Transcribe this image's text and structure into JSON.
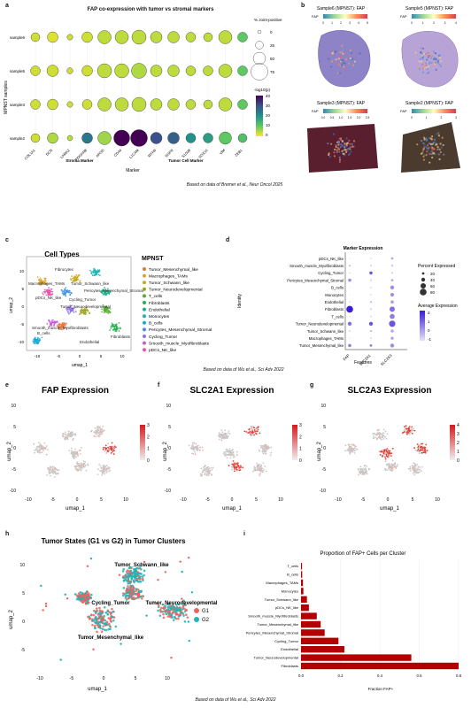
{
  "panels": {
    "a": {
      "letter": "a",
      "title": "FAP co-expression with tumor vs stromal markers",
      "ylabel": "MPNST samples",
      "xlabel": "Marker",
      "group_stroma": "Stroma Marker",
      "group_tumor": "Tumor Cell Marker",
      "legend_size_title": "% Joint-positive",
      "legend_size_values": [
        "0",
        "25",
        "50",
        "75"
      ],
      "legend_color_title": "-log10(p)",
      "legend_color_ticks": [
        "40",
        "30",
        "20",
        "10",
        "0"
      ],
      "caption": "Based on data of Bremer et al., Neur Oncol 2025"
    },
    "b": {
      "letter": "b",
      "tiles": [
        {
          "title": "Sample6 (MPNST): FAP",
          "legend": "FAP",
          "ticks": [
            "0",
            "1",
            "2",
            "3",
            "4",
            "5"
          ]
        },
        {
          "title": "Sample5 (MPNST): FAP",
          "legend": "FAP",
          "ticks": [
            "0",
            "1",
            "2",
            "3",
            "4"
          ]
        },
        {
          "title": "Sample3 (MPNST): FAP",
          "legend": "FAP",
          "ticks": [
            "0.0",
            "0.5",
            "1.0",
            "1.5",
            "2.0",
            "2.5"
          ]
        },
        {
          "title": "Sample2 (MPNST): FAP",
          "legend": "FAP",
          "ticks": [
            "0",
            "1",
            "2",
            "3"
          ]
        }
      ]
    },
    "c": {
      "letter": "c",
      "title": "Cell Types",
      "legend_title": "MPNST",
      "xlabel": "umap_1",
      "ylabel": "umap_2",
      "caption": "Based on data of Wu et al., Sci Adv 2022"
    },
    "d": {
      "letter": "d",
      "title": "Marker Expression",
      "ylabel": "Identity",
      "xlabel": "Features",
      "legend_pct_title": "Percent Expressed",
      "legend_pct_values": [
        "20",
        "40",
        "60",
        "80"
      ],
      "legend_avg_title": "Average Expression",
      "legend_avg_ticks": [
        "2",
        "1",
        "0",
        "-1"
      ]
    },
    "e": {
      "letter": "e",
      "title": "FAP Expression",
      "xlabel": "umap_1",
      "ylabel": "umap_2",
      "ticks": [
        "3",
        "2",
        "1",
        "0"
      ]
    },
    "f": {
      "letter": "f",
      "title": "SLC2A1 Expression",
      "xlabel": "umap_1",
      "ylabel": "umap_2",
      "ticks": [
        "3",
        "2",
        "1",
        "0"
      ]
    },
    "g": {
      "letter": "g",
      "title": "SLC2A3 Expression",
      "xlabel": "umap_1",
      "ylabel": "umap_2",
      "ticks": [
        "4",
        "3",
        "2",
        "1",
        "0"
      ]
    },
    "h": {
      "letter": "h",
      "title": "Tumor States (G1 vs G2) in Tumor Clusters",
      "xlabel": "umap_1",
      "ylabel": "umap_2",
      "cluster_labels": [
        "Tumor_Schwann_like",
        "Cycling_Tumor",
        "Tumor_Neurodevelopmental",
        "Tumor_Mesenchymal_like"
      ],
      "legend": [
        {
          "name": "G1",
          "color": "#f0625e"
        },
        {
          "name": "G2",
          "color": "#1fb5b5"
        }
      ]
    },
    "i": {
      "letter": "i",
      "title": "Proportion of FAP+ Cells per Cluster",
      "xlabel": "Fraction FAP+"
    },
    "footer_caption": "Based on data of Wu et al., Sci Adv 2022"
  },
  "chart_data": [
    {
      "type": "scatter",
      "id": "a-dotplot",
      "title": "FAP co-expression with tumor vs stromal markers",
      "xlabel": "Marker",
      "ylabel": "MPNST samples",
      "categories_x": [
        "COL1A1",
        "DCN",
        "LAMA2",
        "PDGFRB",
        "APOD",
        "CD44",
        "L1CAM",
        "MYH9",
        "NGFR",
        "S100B",
        "SOX10",
        "VIM",
        "ZEB1"
      ],
      "categories_y": [
        "sample6",
        "sample5",
        "sample3",
        "sample2"
      ],
      "pct_joint_positive": [
        [
          30,
          40,
          12,
          40,
          55,
          55,
          60,
          45,
          45,
          35,
          30,
          55,
          35
        ],
        [
          35,
          45,
          14,
          40,
          60,
          60,
          65,
          45,
          45,
          35,
          35,
          55,
          35
        ],
        [
          35,
          40,
          12,
          35,
          55,
          55,
          60,
          45,
          45,
          35,
          30,
          55,
          35
        ],
        [
          30,
          40,
          10,
          40,
          55,
          70,
          75,
          45,
          45,
          35,
          35,
          50,
          30
        ]
      ],
      "neg_log10_p": [
        [
          3,
          2,
          3,
          3,
          4,
          4,
          4,
          4,
          4,
          4,
          4,
          4,
          10
        ],
        [
          3,
          3,
          3,
          3,
          4,
          4,
          5,
          4,
          4,
          4,
          4,
          4,
          10
        ],
        [
          3,
          3,
          3,
          3,
          4,
          4,
          4,
          4,
          4,
          4,
          4,
          4,
          10
        ],
        [
          3,
          5,
          4,
          24,
          6,
          40,
          44,
          30,
          28,
          20,
          18,
          10,
          12
        ]
      ],
      "color_range": [
        0,
        40
      ]
    },
    {
      "type": "scatter",
      "id": "d-dotplot",
      "title": "Marker Expression",
      "xlabel": "Features",
      "ylabel": "Identity",
      "categories_x": [
        "FAP",
        "SLC2A1",
        "SLC2A3"
      ],
      "categories_y": [
        "pDCs_NK_like",
        "Smooth_muscle_Myofibroblasts",
        "Cycling_Tumor",
        "Pericytes_Mesenchymal_Stromal",
        "B_cells",
        "Monocytes",
        "Endothelial",
        "Fibroblasts",
        "T_cells",
        "Tumor_Neurodevelopmental",
        "Tumor_Schwann_like",
        "Macrophages_TAMs",
        "Tumor_Mesenchymal_like"
      ],
      "percent_expressed": [
        [
          2,
          5,
          18
        ],
        [
          10,
          8,
          15
        ],
        [
          5,
          30,
          10
        ],
        [
          30,
          10,
          20
        ],
        [
          2,
          5,
          40
        ],
        [
          2,
          5,
          35
        ],
        [
          5,
          10,
          30
        ],
        [
          80,
          10,
          60
        ],
        [
          2,
          5,
          55
        ],
        [
          40,
          40,
          75
        ],
        [
          8,
          10,
          30
        ],
        [
          2,
          5,
          25
        ],
        [
          30,
          20,
          40
        ]
      ],
      "average_expression": [
        [
          -1,
          -0.5,
          0
        ],
        [
          0,
          -0.5,
          -0.5
        ],
        [
          -0.5,
          1.5,
          -0.5
        ],
        [
          0.5,
          -0.5,
          0
        ],
        [
          -1,
          -0.5,
          0.5
        ],
        [
          -1,
          -0.5,
          0.5
        ],
        [
          -0.5,
          0,
          0.3
        ],
        [
          2.5,
          -0.5,
          1
        ],
        [
          -1,
          -0.5,
          0.8
        ],
        [
          1,
          1.5,
          1.5
        ],
        [
          -0.5,
          0,
          0
        ],
        [
          -1,
          -0.5,
          0.3
        ],
        [
          0.8,
          0.8,
          0.5
        ]
      ]
    },
    {
      "type": "bar",
      "id": "i-bar",
      "title": "Proportion of FAP+ Cells per Cluster",
      "xlabel": "Fraction FAP+",
      "orientation": "horizontal",
      "categories": [
        "T_cells",
        "B_cells",
        "Macrophages_TAMs",
        "Monocytes",
        "Tumor_Schwann_like",
        "pDCs_NK_like",
        "Smooth_muscle_Myofibroblasts",
        "Tumor_Mesenchymal_like",
        "Pericytes_Mesenchymal_Stromal",
        "Cycling_Tumor",
        "Endothelial",
        "Tumor_Neurodevelopmental",
        "Fibroblasts"
      ],
      "values": [
        0.005,
        0.006,
        0.01,
        0.012,
        0.03,
        0.04,
        0.08,
        0.1,
        0.12,
        0.19,
        0.22,
        0.56,
        0.8
      ],
      "xlim": [
        0,
        0.8
      ],
      "xticks": [
        "0.0",
        "0.2",
        "0.4",
        "0.6",
        "0.8"
      ],
      "color": "#b30000"
    },
    {
      "type": "scatter",
      "id": "c-legend",
      "legend": [
        {
          "name": "Tumor_Mesenchymal_like",
          "color": "#e8743b"
        },
        {
          "name": "Macrophages_TAMs",
          "color": "#e0a12a"
        },
        {
          "name": "Tumor_Schwann_like",
          "color": "#c7a91f"
        },
        {
          "name": "Tumor_Neurodevelopmental",
          "color": "#9aa51c"
        },
        {
          "name": "T_cells",
          "color": "#56ac2f"
        },
        {
          "name": "Fibroblasts",
          "color": "#22b04a"
        },
        {
          "name": "Endothelial",
          "color": "#1ab08d"
        },
        {
          "name": "Monocytes",
          "color": "#1db3b3"
        },
        {
          "name": "B_cells",
          "color": "#1aa8d6"
        },
        {
          "name": "Pericytes_Mesenchymal_Stromal",
          "color": "#3f8fe5"
        },
        {
          "name": "Cycling_Tumor",
          "color": "#8f72e8"
        },
        {
          "name": "Smooth_muscle_Myofibroblasts",
          "color": "#c85ad8"
        },
        {
          "name": "pDCs_NK_like",
          "color": "#e752a8"
        }
      ]
    }
  ]
}
